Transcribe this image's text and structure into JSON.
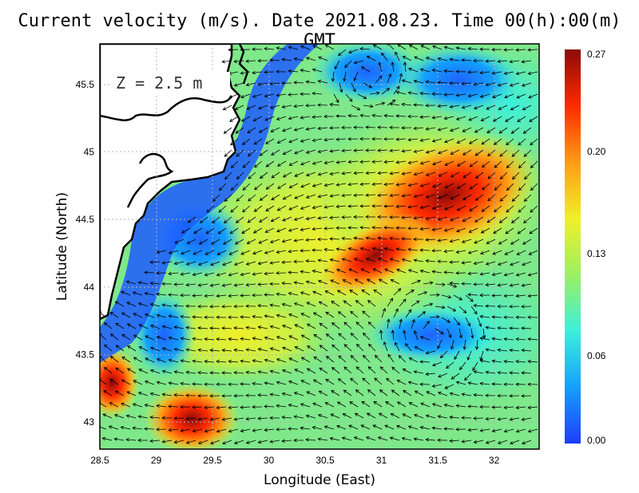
{
  "title": "Current velocity (m/s). Date 2021.08.23. Time 00(h):00(m) GMT",
  "depth_label": "Z = 2.5 m",
  "x_axis": {
    "label": "Longitude (East)",
    "ticks": [
      "28.5",
      "29",
      "29.5",
      "30",
      "30.5",
      "31",
      "31.5",
      "32"
    ],
    "range": [
      28.5,
      32.4
    ]
  },
  "y_axis": {
    "label": "Latitude (North)",
    "ticks": [
      "43",
      "43.5",
      "44",
      "44.5",
      "45",
      "45.5"
    ],
    "range": [
      42.8,
      45.8
    ]
  },
  "colorbar": {
    "ticks": [
      "0.00",
      "0.06",
      "0.13",
      "0.20",
      "0.27"
    ],
    "range": [
      0.0,
      0.27
    ],
    "colors": [
      "#1e3cff",
      "#14a0ff",
      "#3cf0dc",
      "#9cf060",
      "#f0f028",
      "#ff9b14",
      "#ff2a00",
      "#8c0a0a"
    ]
  },
  "map": {
    "gridlines": true,
    "land_color": "#ffffff",
    "coastline_color": "#000000",
    "grid_color": "#b4b4b4"
  }
}
